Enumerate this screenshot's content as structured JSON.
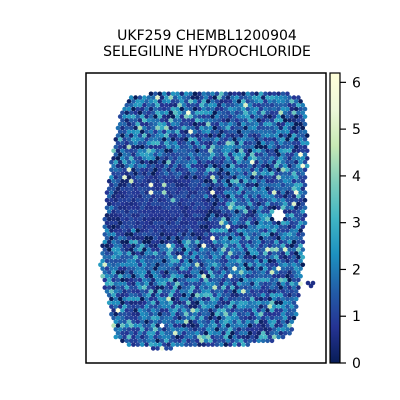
{
  "chart_data": {
    "type": "spatial-hexbin",
    "title_line1": "UKF259 CHEMBL1200904",
    "title_line2": "SELEGILINE HYDROCHLORIDE",
    "xlabel": "",
    "ylabel": "",
    "colorbar": {
      "colormap": "YlGnBu",
      "min": 0,
      "max": 6.2,
      "ticks": [
        0,
        1,
        2,
        3,
        4,
        5,
        6
      ],
      "tick_labels": [
        "0",
        "1",
        "2",
        "3",
        "4",
        "5",
        "6"
      ]
    },
    "colors": {
      "low": "#081d58",
      "mid": "#1d91c0",
      "high": "#ffffd9",
      "frame": "#000000",
      "background": "#ffffff"
    },
    "distribution": {
      "typical_value": 1.5,
      "spread": 0.9,
      "max_observed": 6.2,
      "low_region_note": "dense dark-blue patch (values near 0-1) in the upper-left-center of the tissue"
    },
    "grid": false,
    "axes_ticks_shown": false
  }
}
